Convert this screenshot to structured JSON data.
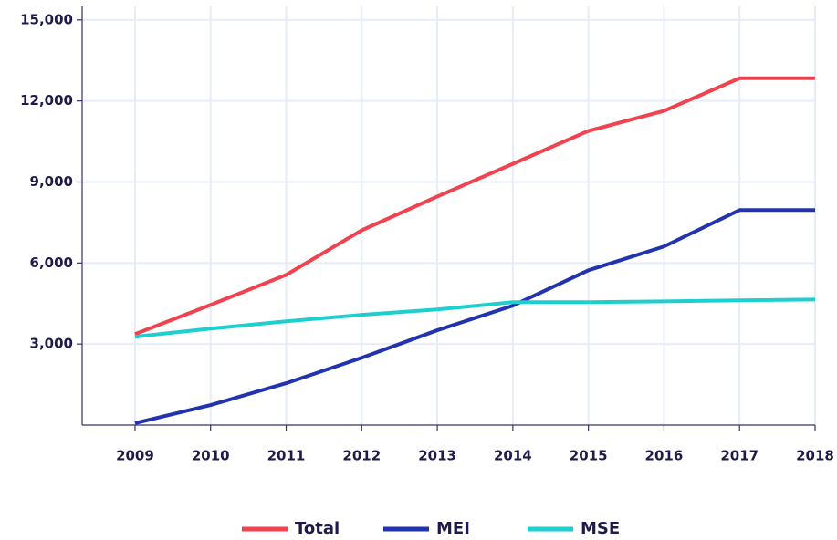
{
  "chart_data": {
    "type": "line",
    "x": [
      2009,
      2010,
      2011,
      2012,
      2013,
      2014,
      2015,
      2016,
      2017,
      2018
    ],
    "series": [
      {
        "name": "Total",
        "color": "#f0434f",
        "values": [
          3370,
          4450,
          5560,
          7210,
          8460,
          9670,
          10890,
          11630,
          12840,
          12840
        ]
      },
      {
        "name": "MEI",
        "color": "#2233b0",
        "values": [
          70,
          740,
          1550,
          2490,
          3510,
          4420,
          5730,
          6610,
          7960,
          7960
        ]
      },
      {
        "name": "MSE",
        "color": "#1fcfcf",
        "values": [
          3270,
          3570,
          3840,
          4080,
          4280,
          4550,
          4550,
          4580,
          4620,
          4650
        ]
      }
    ],
    "xlim": [
      2008.3,
      2018
    ],
    "xticks": [
      2009,
      2010,
      2011,
      2012,
      2013,
      2014,
      2015,
      2016,
      2017,
      2018
    ],
    "ylim": [
      0,
      15500
    ],
    "yticks": [
      {
        "value": 3000,
        "label": "3,000"
      },
      {
        "value": 6000,
        "label": "6,000"
      },
      {
        "value": 9000,
        "label": "9,000"
      },
      {
        "value": 12000,
        "label": "12,000"
      },
      {
        "value": 15000,
        "label": "15,000"
      }
    ],
    "grid": true,
    "legend": "bottom"
  }
}
